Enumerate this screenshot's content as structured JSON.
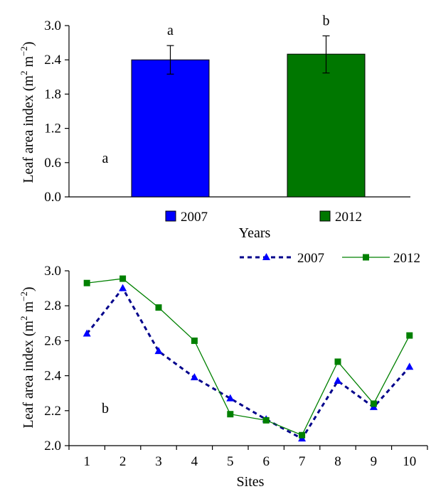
{
  "chart_data": [
    {
      "type": "bar",
      "panel_label": "a",
      "categories": [
        "2007",
        "2012"
      ],
      "values": [
        2.4,
        2.5
      ],
      "error_up": [
        0.25,
        0.32
      ],
      "error_down": [
        0.25,
        0.33
      ],
      "significance_labels": [
        "a",
        "b"
      ],
      "colors": [
        "#0000ff",
        "#007700"
      ],
      "xlabel": "Years",
      "ylabel_main": "Leaf area index (m",
      "ylabel_sup1": "2",
      "ylabel_mid": " m",
      "ylabel_sup2": "−2",
      "ylabel_end": ")",
      "ylim": [
        0,
        3.0
      ],
      "yticks": [
        "0.0",
        "0.6",
        "1.2",
        "1.8",
        "2.4",
        "3.0"
      ],
      "legend": [
        "2007",
        "2012"
      ],
      "legend_position": "bottom",
      "grid": false
    },
    {
      "type": "line",
      "panel_label": "b",
      "x": [
        "1",
        "2",
        "3",
        "4",
        "5",
        "6",
        "7",
        "8",
        "9",
        "10"
      ],
      "series": [
        {
          "name": "2007",
          "values": [
            2.64,
            2.9,
            2.54,
            2.39,
            2.27,
            2.15,
            2.04,
            2.37,
            2.22,
            2.45
          ],
          "color": "#00008b",
          "marker_color": "#0000ff",
          "style": "dashed",
          "marker": "triangle"
        },
        {
          "name": "2012",
          "values": [
            2.93,
            2.955,
            2.79,
            2.6,
            2.18,
            2.145,
            2.06,
            2.48,
            2.24,
            2.63
          ],
          "color": "#008000",
          "marker_color": "#008000",
          "style": "solid",
          "marker": "square"
        }
      ],
      "xlabel": "Sites",
      "ylabel_main": "Leaf area index (m",
      "ylabel_sup1": "2",
      "ylabel_mid": " m",
      "ylabel_sup2": "−2",
      "ylabel_end": ")",
      "ylim": [
        2.0,
        3.0
      ],
      "yticks": [
        "2.0",
        "2.2",
        "2.4",
        "2.6",
        "2.8",
        "3.0"
      ],
      "legend_position": "top-right",
      "grid": false
    }
  ]
}
